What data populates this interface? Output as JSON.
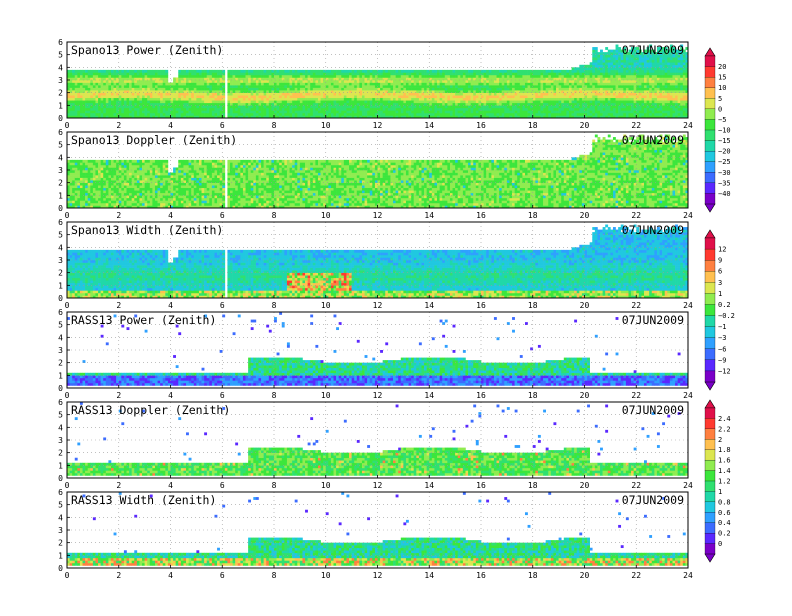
{
  "chart_data": [
    {
      "type": "heatmap",
      "title": "Spano13 Power (Zenith)",
      "date": "07JUN2009",
      "xlabel": "",
      "ylabel": "",
      "xlim": [
        0,
        24
      ],
      "ylim": [
        0,
        6
      ],
      "x_ticks": [
        "0",
        "2",
        "4",
        "6",
        "8",
        "10",
        "12",
        "14",
        "16",
        "18",
        "20",
        "22",
        "24"
      ],
      "y_ticks": [
        "0",
        "1",
        "2",
        "3",
        "4",
        "5",
        "6"
      ],
      "grid": true,
      "field": "power",
      "colorbar": "A",
      "description": ""
    },
    {
      "type": "heatmap",
      "title": "Spano13 Doppler (Zenith)",
      "date": "07JUN2009",
      "xlim": [
        0,
        24
      ],
      "ylim": [
        0,
        6
      ],
      "x_ticks": [
        "0",
        "2",
        "4",
        "6",
        "8",
        "10",
        "12",
        "14",
        "16",
        "18",
        "20",
        "22",
        "24"
      ],
      "y_ticks": [
        "0",
        "1",
        "2",
        "3",
        "4",
        "5",
        "6"
      ],
      "grid": true,
      "field": "doppler",
      "colorbar": "A"
    },
    {
      "type": "heatmap",
      "title": "Spano13 Width (Zenith)",
      "date": "07JUN2009",
      "xlim": [
        0,
        24
      ],
      "ylim": [
        0,
        6
      ],
      "x_ticks": [
        "0",
        "2",
        "4",
        "6",
        "8",
        "10",
        "12",
        "14",
        "16",
        "18",
        "20",
        "22",
        "24"
      ],
      "y_ticks": [
        "0",
        "1",
        "2",
        "3",
        "4",
        "5",
        "6"
      ],
      "grid": true,
      "field": "width",
      "colorbar": "B"
    },
    {
      "type": "heatmap",
      "title": "RASS13 Power (Zenith)",
      "date": "07JUN2009",
      "xlim": [
        0,
        24
      ],
      "ylim": [
        0,
        6
      ],
      "x_ticks": [
        "0",
        "2",
        "4",
        "6",
        "8",
        "10",
        "12",
        "14",
        "16",
        "18",
        "20",
        "22",
        "24"
      ],
      "y_ticks": [
        "0",
        "1",
        "2",
        "3",
        "4",
        "5",
        "6"
      ],
      "grid": true,
      "field": "rass_power",
      "colorbar": "B"
    },
    {
      "type": "heatmap",
      "title": "RASS13 Doppler (Zenith)",
      "date": "07JUN2009",
      "xlim": [
        0,
        24
      ],
      "ylim": [
        0,
        6
      ],
      "x_ticks": [
        "0",
        "2",
        "4",
        "6",
        "8",
        "10",
        "12",
        "14",
        "16",
        "18",
        "20",
        "22",
        "24"
      ],
      "y_ticks": [
        "0",
        "1",
        "2",
        "3",
        "4",
        "5",
        "6"
      ],
      "grid": true,
      "field": "rass_doppler",
      "colorbar": "C"
    },
    {
      "type": "heatmap",
      "title": "RASS13 Width (Zenith)",
      "date": "07JUN2009",
      "xlim": [
        0,
        24
      ],
      "ylim": [
        0,
        6
      ],
      "x_ticks": [
        "0",
        "2",
        "4",
        "6",
        "8",
        "10",
        "12",
        "14",
        "16",
        "18",
        "20",
        "22",
        "24"
      ],
      "y_ticks": [
        "0",
        "1",
        "2",
        "3",
        "4",
        "5",
        "6"
      ],
      "grid": true,
      "field": "rass_width",
      "colorbar": "C"
    }
  ],
  "colorbars": {
    "A": {
      "labels": [
        "20",
        "15",
        "10",
        "5",
        "0",
        "−5",
        "−10",
        "−15",
        "−20",
        "−25",
        "−30",
        "−35",
        "−40"
      ]
    },
    "B": {
      "labels": [
        "12",
        "9",
        "6",
        "3",
        "1",
        "0.2",
        "−0.2",
        "−1",
        "−3",
        "−6",
        "−9",
        "−12"
      ]
    },
    "C": {
      "labels": [
        "2.4",
        "2.2",
        "2",
        "1.8",
        "1.6",
        "1.4",
        "1.2",
        "1",
        "0.8",
        "0.6",
        "0.4",
        "0.2",
        "0"
      ]
    }
  },
  "palette": [
    "#7a00c8",
    "#5a28ff",
    "#3c6cff",
    "#2fa0ff",
    "#20c8e0",
    "#20d8a8",
    "#30e070",
    "#3ce63c",
    "#90ec50",
    "#dce650",
    "#ffc050",
    "#ff8040",
    "#ff3a30",
    "#e0104a"
  ]
}
